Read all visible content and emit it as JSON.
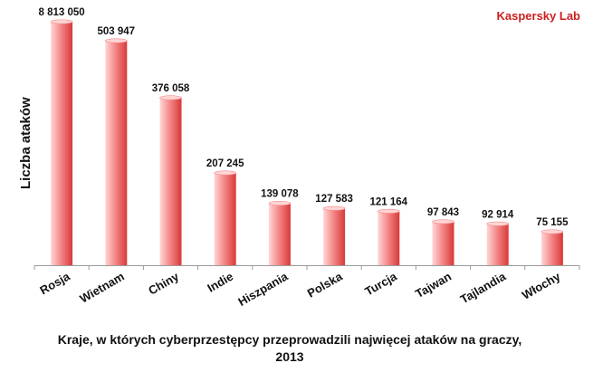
{
  "brand": {
    "text": "Kaspersky Lab",
    "color": "#cc1f1f"
  },
  "colors": {
    "bar_light": "#ffd6d6",
    "bar_mid": "#f48a8a",
    "bar_dark": "#d93838",
    "axis": "#9a9a9a"
  },
  "chart_data": {
    "type": "bar",
    "title": "",
    "xlabel": "Kraje, w których cyberprzestępcy przeprowadzili najwięcej ataków na graczy, 2013",
    "ylabel": "Liczba ataków",
    "categories": [
      "Rosja",
      "Wietnam",
      "Chiny",
      "Indie",
      "Hiszpania",
      "Polska",
      "Turcja",
      "Tajwan",
      "Tajlandia",
      "Włochy"
    ],
    "values": [
      8813050,
      503947,
      376058,
      207245,
      139078,
      127583,
      121164,
      97843,
      92914,
      75155
    ],
    "data_labels": [
      "8 813 050",
      "503 947",
      "376 058",
      "207 245",
      "139 078",
      "127 583",
      "121 164",
      "97 843",
      "92 914",
      "75 155"
    ],
    "grid": false,
    "legend": "none",
    "y_axis_visible": false,
    "note": "broken (non-linear) y-scale; bar heights follow the image"
  }
}
